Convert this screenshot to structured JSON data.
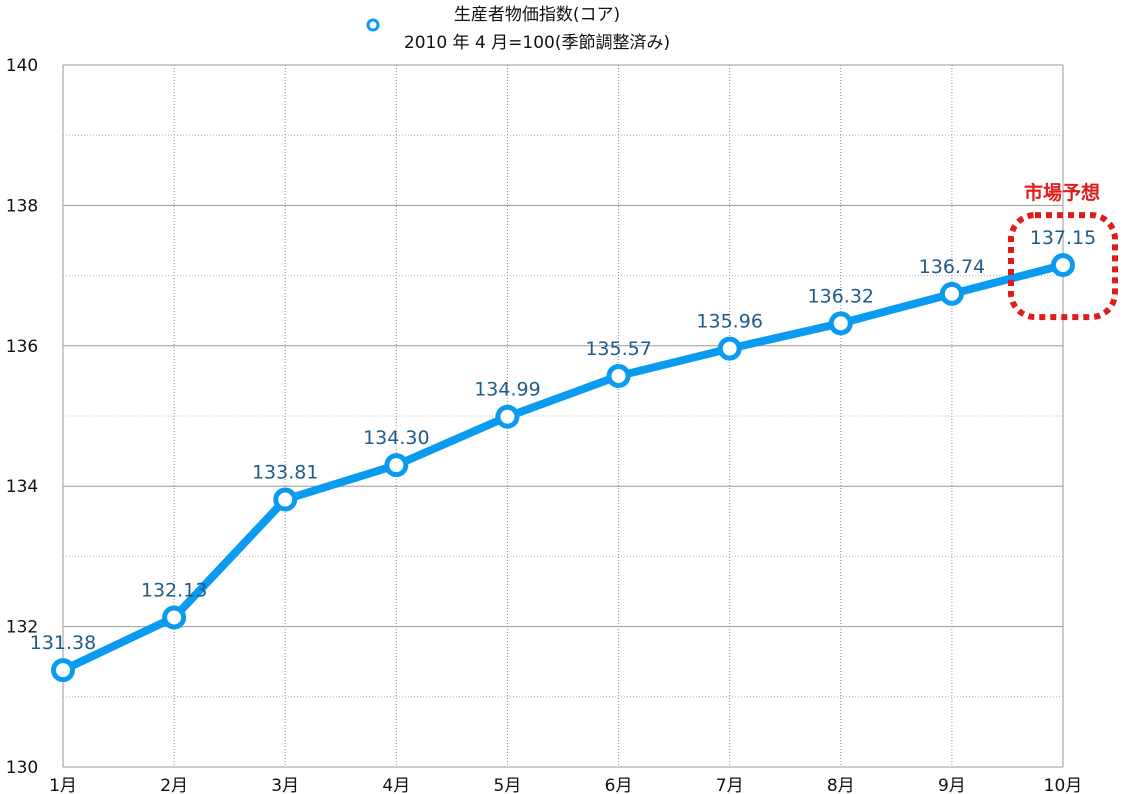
{
  "chart_data": {
    "type": "line",
    "legend": {
      "line1": "生産者物価指数(コア)",
      "line2": "2010 年 4 月=100(季節調整済み)",
      "placement": "top-center"
    },
    "categories": [
      "1月",
      "2月",
      "3月",
      "4月",
      "5月",
      "6月",
      "7月",
      "8月",
      "9月",
      "10月"
    ],
    "series": [
      {
        "values": [
          131.38,
          132.13,
          133.81,
          134.3,
          134.99,
          135.57,
          135.96,
          136.32,
          136.74,
          137.15
        ],
        "labels": [
          "131.38",
          "132.13",
          "133.81",
          "134.30",
          "134.99",
          "135.57",
          "135.96",
          "136.32",
          "136.74",
          "137.15"
        ],
        "color": "#0a9bf0"
      }
    ],
    "yticks": [
      "130",
      "132",
      "134",
      "136",
      "138",
      "140"
    ],
    "ylim": [
      130,
      140
    ],
    "grid": true,
    "annotation": {
      "text": "市場予想",
      "target_index": 9,
      "color": "#e01b1b"
    }
  }
}
